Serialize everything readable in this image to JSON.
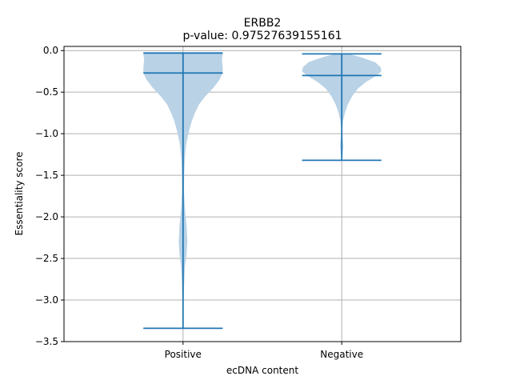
{
  "chart_data": {
    "type": "violin",
    "title": "ERBB2",
    "subtitle": "p-value: 0.97527639155161",
    "xlabel": "ecDNA content",
    "ylabel": "Essentiality score",
    "categories": [
      "Positive",
      "Negative"
    ],
    "ylim": [
      -3.5,
      0.05
    ],
    "yticks": [
      0.0,
      -0.5,
      -1.0,
      -1.5,
      -2.0,
      -2.5,
      -3.0,
      -3.5
    ],
    "ytick_labels": [
      "0.0",
      "−0.5",
      "−1.0",
      "−1.5",
      "−2.0",
      "−2.5",
      "−3.0",
      "−3.5"
    ],
    "grid": true,
    "series": [
      {
        "max": -0.03,
        "median": -0.27,
        "min": -3.34,
        "density": [
          [
            -0.03,
            0.25
          ],
          [
            -0.12,
            0.245
          ],
          [
            -0.2,
            0.25
          ],
          [
            -0.27,
            0.25
          ],
          [
            -0.35,
            0.23
          ],
          [
            -0.45,
            0.19
          ],
          [
            -0.55,
            0.14
          ],
          [
            -0.65,
            0.1
          ],
          [
            -0.75,
            0.075
          ],
          [
            -0.85,
            0.055
          ],
          [
            -0.95,
            0.04
          ],
          [
            -1.05,
            0.028
          ],
          [
            -1.15,
            0.018
          ],
          [
            -1.3,
            0.011
          ],
          [
            -1.5,
            0.007
          ],
          [
            -1.7,
            0.006
          ],
          [
            -1.9,
            0.012
          ],
          [
            -2.1,
            0.022
          ],
          [
            -2.3,
            0.027
          ],
          [
            -2.45,
            0.022
          ],
          [
            -2.6,
            0.012
          ],
          [
            -2.8,
            0.007
          ],
          [
            -3.0,
            0.004
          ],
          [
            -3.2,
            0.0015
          ],
          [
            -3.34,
            0.0008
          ]
        ]
      },
      {
        "max": -0.04,
        "median": -0.3,
        "min": -1.32,
        "density": [
          [
            -0.04,
            0.04
          ],
          [
            -0.08,
            0.12
          ],
          [
            -0.14,
            0.21
          ],
          [
            -0.2,
            0.245
          ],
          [
            -0.25,
            0.25
          ],
          [
            -0.3,
            0.22
          ],
          [
            -0.38,
            0.15
          ],
          [
            -0.46,
            0.1
          ],
          [
            -0.55,
            0.065
          ],
          [
            -0.65,
            0.038
          ],
          [
            -0.75,
            0.02
          ],
          [
            -0.85,
            0.008
          ],
          [
            -0.95,
            0.003
          ],
          [
            -1.05,
            0.006
          ],
          [
            -1.15,
            0.01
          ],
          [
            -1.25,
            0.005
          ],
          [
            -1.32,
            0.002
          ]
        ]
      }
    ],
    "colors": {
      "fill": "#b9d2e6",
      "line": "#1f77b4",
      "grid": "#b0b0b0"
    }
  }
}
